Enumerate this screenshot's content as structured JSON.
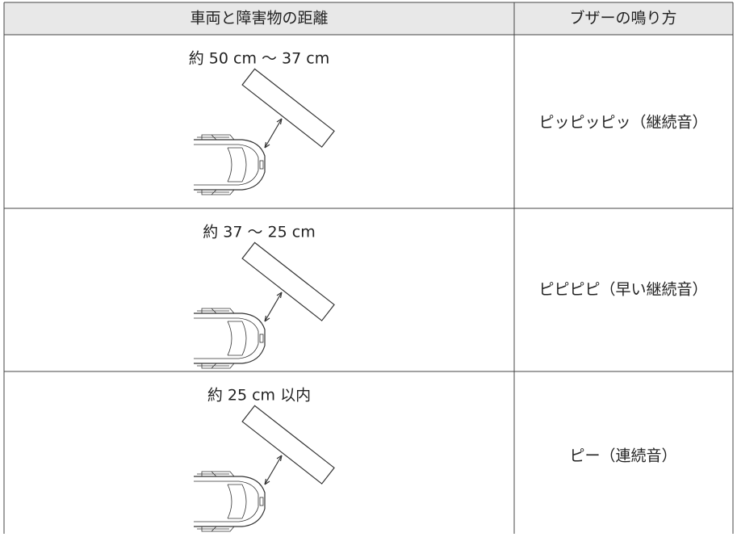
{
  "table": {
    "header": [
      "車両と障害物の距離",
      "ブザーの鳴り方"
    ],
    "rows": [
      [
        "約 50 cm ～ 37 cm",
        "ピッピッピッ（継続音）"
      ],
      [
        "約 37 ～ 25 cm",
        "ピピピピ（早い継続音）"
      ],
      [
        "約 25 cm 以内",
        "ピー（連続音）"
      ]
    ]
  }
}
